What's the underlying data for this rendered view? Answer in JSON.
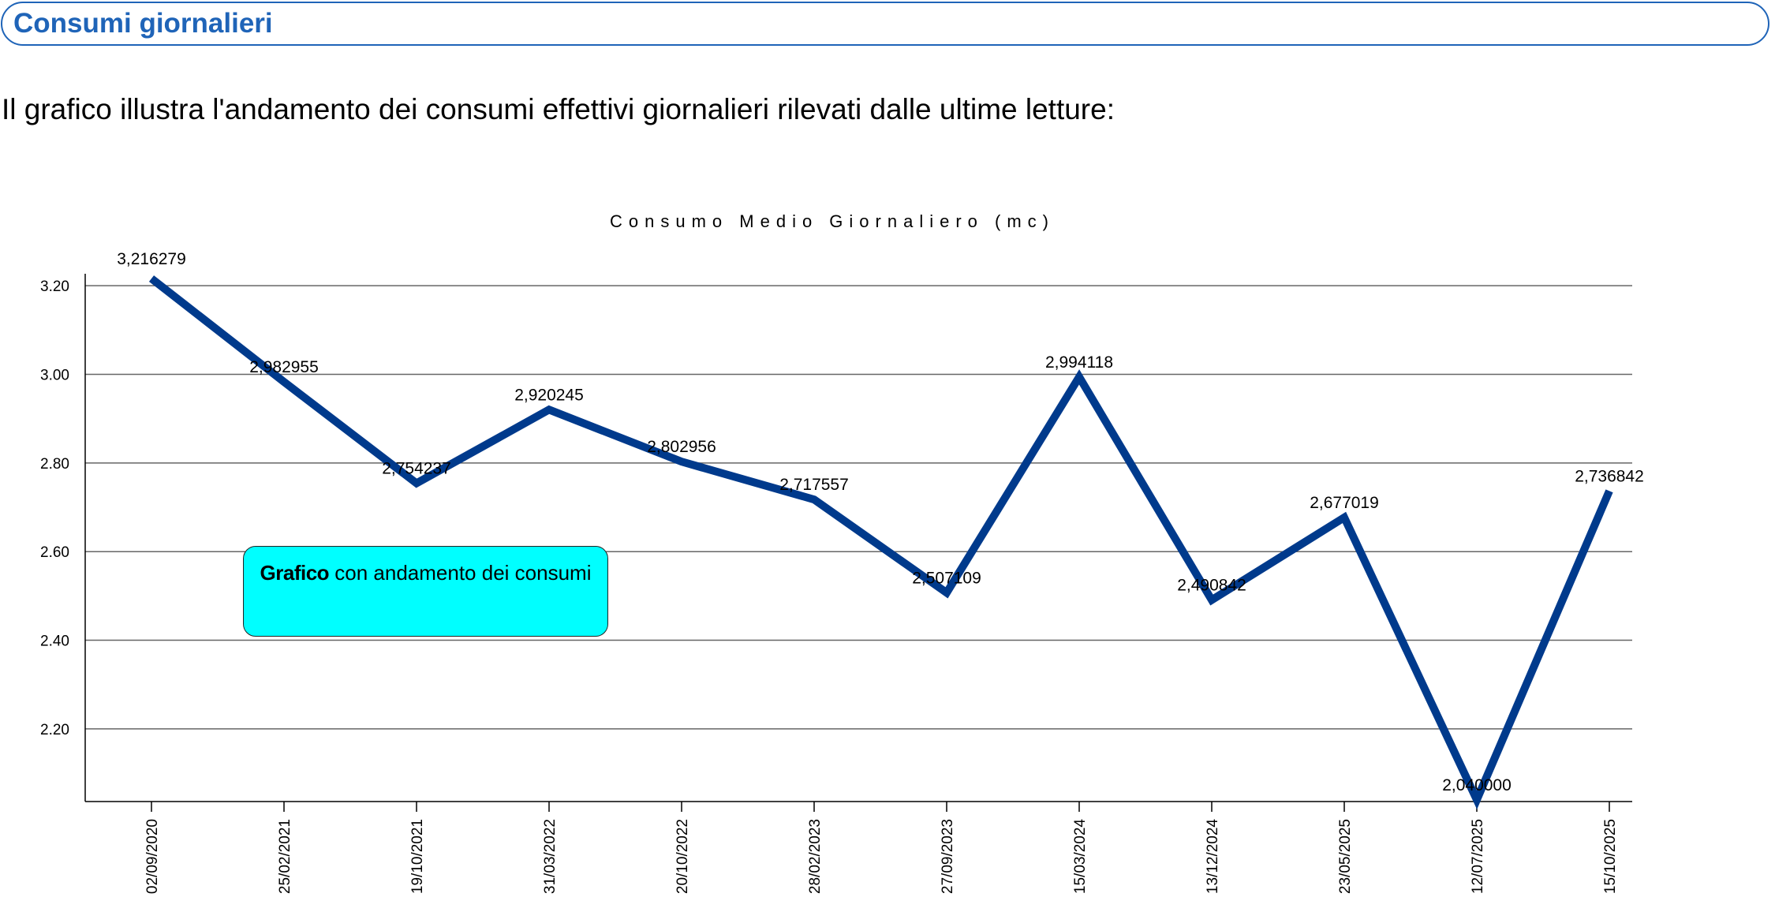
{
  "header": {
    "title": "Consumi giornalieri"
  },
  "intro": "Il grafico illustra l'andamento dei consumi effettivi giornalieri rilevati dalle ultime letture:",
  "callout": {
    "bold": "Grafico",
    "text": " con andamento dei consumi"
  },
  "chart_data": {
    "type": "line",
    "title": "Consumo Medio Giornaliero (mc)",
    "categories": [
      "02/09/2020",
      "25/02/2021",
      "19/10/2021",
      "31/03/2022",
      "20/10/2022",
      "28/02/2023",
      "27/09/2023",
      "15/03/2024",
      "13/12/2024",
      "23/05/2025",
      "12/07/2025",
      "15/10/2025"
    ],
    "values": [
      3.216279,
      2.982955,
      2.754237,
      2.920245,
      2.802956,
      2.717557,
      2.507109,
      2.994118,
      2.490842,
      2.677019,
      2.04,
      2.736842
    ],
    "data_labels": [
      "3,216279",
      "2,982955",
      "2,754237",
      "2,920245",
      "2,802956",
      "2,717557",
      "2,507109",
      "2,994118",
      "2,490842",
      "2,677019",
      "2,040000",
      "2,736842"
    ],
    "yticks": [
      "2.20",
      "2.40",
      "2.60",
      "2.80",
      "3.00",
      "3.20"
    ],
    "ylim": [
      2.036,
      3.227
    ],
    "grid": "horizontal",
    "line_color": "#003a8c",
    "xlabel": "",
    "ylabel": ""
  },
  "colors": {
    "header": "#1f64b8",
    "callout_fill": "#00ffff"
  }
}
